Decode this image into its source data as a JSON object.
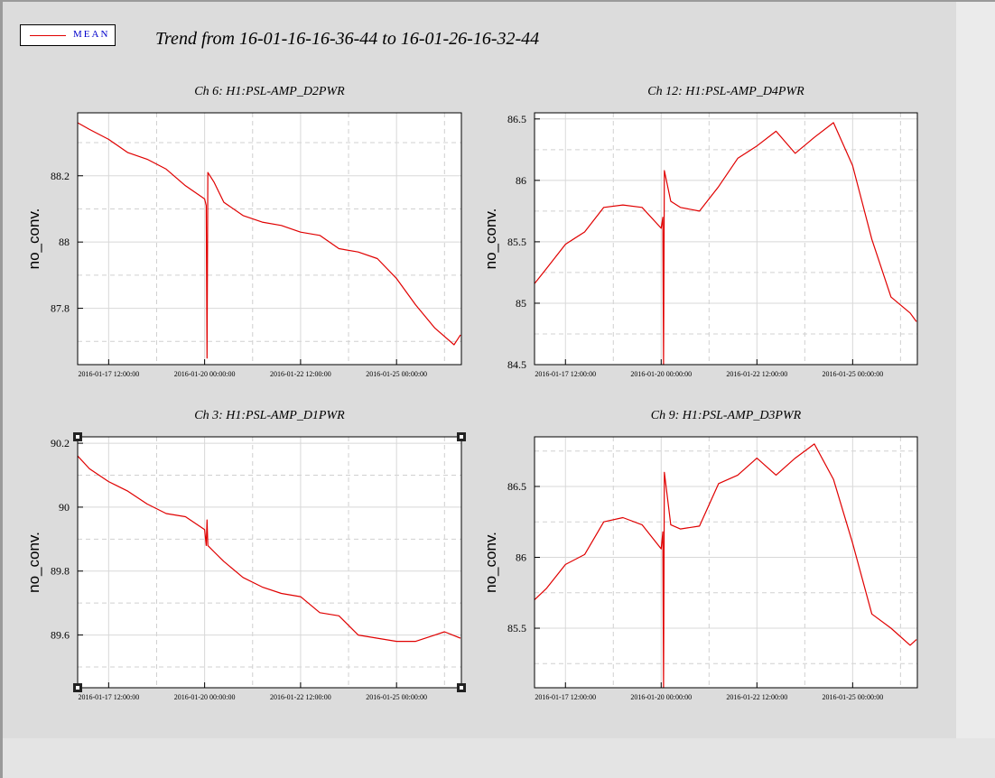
{
  "header": {
    "title": "Trend from 16-01-16-16-36-44 to 16-01-26-16-32-44",
    "legend_label": "MEAN",
    "legend_color": "#e00000"
  },
  "colors": {
    "plot_bg": "#ffffff",
    "page_bg": "#dcdcdc",
    "trace": "#e00000"
  },
  "chart_data": [
    {
      "type": "line",
      "title": "Ch 6: H1:PSL-AMP_D2PWR",
      "ylabel": "no_conv.",
      "x_ticks": [
        "2016-01-17 12:00:00",
        "2016-01-20 00:00:00",
        "2016-01-22 12:00:00",
        "2016-01-25 00:00:00"
      ],
      "y_ticks": [
        87.8,
        88,
        88.2
      ],
      "ylim": [
        87.63,
        88.39
      ],
      "xlim": [
        "2016-01-16 16:36:44",
        "2016-01-26 16:32:44"
      ],
      "grid": true,
      "series": [
        {
          "name": "MEAN",
          "x": [
            "2016-01-16 16:36",
            "2016-01-17 00:00",
            "2016-01-17 12:00",
            "2016-01-18 00:00",
            "2016-01-18 12:00",
            "2016-01-19 00:00",
            "2016-01-19 12:00",
            "2016-01-20 00:00",
            "2016-01-20 01:00",
            "2016-01-20 01:30",
            "2016-01-20 02:00",
            "2016-01-20 06:00",
            "2016-01-20 12:00",
            "2016-01-21 00:00",
            "2016-01-21 12:00",
            "2016-01-22 00:00",
            "2016-01-22 12:00",
            "2016-01-23 00:00",
            "2016-01-23 12:00",
            "2016-01-24 00:00",
            "2016-01-24 12:00",
            "2016-01-25 00:00",
            "2016-01-25 12:00",
            "2016-01-26 00:00",
            "2016-01-26 12:00",
            "2016-01-26 16:00"
          ],
          "values": [
            88.36,
            88.34,
            88.31,
            88.27,
            88.25,
            88.22,
            88.17,
            88.13,
            88.11,
            87.65,
            88.21,
            88.18,
            88.12,
            88.08,
            88.06,
            88.05,
            88.03,
            88.02,
            87.98,
            87.97,
            87.95,
            87.89,
            87.81,
            87.74,
            87.69,
            87.72
          ]
        }
      ]
    },
    {
      "type": "line",
      "title": "Ch 12: H1:PSL-AMP_D4PWR",
      "ylabel": "no_conv.",
      "x_ticks": [
        "2016-01-17 12:00:00",
        "2016-01-20 00:00:00",
        "2016-01-22 12:00:00",
        "2016-01-25 00:00:00"
      ],
      "y_ticks": [
        84.5,
        85,
        85.5,
        86,
        86.5
      ],
      "ylim": [
        84.5,
        86.55
      ],
      "xlim": [
        "2016-01-16 16:36:44",
        "2016-01-26 16:32:44"
      ],
      "grid": true,
      "series": [
        {
          "name": "MEAN",
          "x": [
            "2016-01-16 16:36",
            "2016-01-17 00:00",
            "2016-01-17 12:00",
            "2016-01-18 00:00",
            "2016-01-18 12:00",
            "2016-01-19 00:00",
            "2016-01-19 12:00",
            "2016-01-20 00:00",
            "2016-01-20 01:00",
            "2016-01-20 01:30",
            "2016-01-20 02:00",
            "2016-01-20 06:00",
            "2016-01-20 12:00",
            "2016-01-21 00:00",
            "2016-01-21 12:00",
            "2016-01-22 00:00",
            "2016-01-22 12:00",
            "2016-01-23 00:00",
            "2016-01-23 12:00",
            "2016-01-24 00:00",
            "2016-01-24 12:00",
            "2016-01-25 00:00",
            "2016-01-25 12:00",
            "2016-01-26 00:00",
            "2016-01-26 12:00",
            "2016-01-26 16:00"
          ],
          "values": [
            85.16,
            85.28,
            85.48,
            85.58,
            85.78,
            85.8,
            85.78,
            85.61,
            85.7,
            84.5,
            86.08,
            85.83,
            85.78,
            85.75,
            85.95,
            86.18,
            86.28,
            86.4,
            86.22,
            86.35,
            86.47,
            86.12,
            85.52,
            85.05,
            84.92,
            84.85
          ]
        }
      ]
    },
    {
      "type": "line",
      "title": "Ch 3: H1:PSL-AMP_D1PWR",
      "ylabel": "no_conv.",
      "x_ticks": [
        "2016-01-17 12:00:00",
        "2016-01-20 00:00:00",
        "2016-01-22 12:00:00",
        "2016-01-25 00:00:00"
      ],
      "y_ticks": [
        89.6,
        89.8,
        90,
        90.2
      ],
      "ylim": [
        89.435,
        90.22
      ],
      "xlim": [
        "2016-01-16 16:36:44",
        "2016-01-26 16:32:44"
      ],
      "grid": true,
      "series": [
        {
          "name": "MEAN",
          "x": [
            "2016-01-16 16:36",
            "2016-01-17 00:00",
            "2016-01-17 12:00",
            "2016-01-18 00:00",
            "2016-01-18 12:00",
            "2016-01-19 00:00",
            "2016-01-19 12:00",
            "2016-01-20 00:00",
            "2016-01-20 01:00",
            "2016-01-20 01:30",
            "2016-01-20 02:00",
            "2016-01-20 06:00",
            "2016-01-20 12:00",
            "2016-01-21 00:00",
            "2016-01-21 12:00",
            "2016-01-22 00:00",
            "2016-01-22 12:00",
            "2016-01-23 00:00",
            "2016-01-23 12:00",
            "2016-01-24 00:00",
            "2016-01-24 12:00",
            "2016-01-25 00:00",
            "2016-01-25 12:00",
            "2016-01-26 00:00",
            "2016-01-26 06:00",
            "2016-01-26 16:00"
          ],
          "values": [
            90.16,
            90.12,
            90.08,
            90.05,
            90.01,
            89.98,
            89.97,
            89.93,
            89.88,
            89.96,
            89.88,
            89.86,
            89.83,
            89.78,
            89.75,
            89.73,
            89.72,
            89.67,
            89.66,
            89.6,
            89.59,
            89.58,
            89.58,
            89.6,
            89.61,
            89.59
          ]
        }
      ]
    },
    {
      "type": "line",
      "title": "Ch 9: H1:PSL-AMP_D3PWR",
      "ylabel": "no_conv.",
      "x_ticks": [
        "2016-01-17 12:00:00",
        "2016-01-20 00:00:00",
        "2016-01-22 12:00:00",
        "2016-01-25 00:00:00"
      ],
      "y_ticks": [
        85.5,
        86,
        86.5
      ],
      "ylim": [
        85.08,
        86.85
      ],
      "xlim": [
        "2016-01-16 16:36:44",
        "2016-01-26 16:32:44"
      ],
      "grid": true,
      "series": [
        {
          "name": "MEAN",
          "x": [
            "2016-01-16 16:36",
            "2016-01-17 00:00",
            "2016-01-17 12:00",
            "2016-01-18 00:00",
            "2016-01-18 12:00",
            "2016-01-19 00:00",
            "2016-01-19 12:00",
            "2016-01-20 00:00",
            "2016-01-20 01:00",
            "2016-01-20 01:30",
            "2016-01-20 02:00",
            "2016-01-20 06:00",
            "2016-01-20 12:00",
            "2016-01-21 00:00",
            "2016-01-21 12:00",
            "2016-01-22 00:00",
            "2016-01-22 12:00",
            "2016-01-23 00:00",
            "2016-01-23 12:00",
            "2016-01-24 00:00",
            "2016-01-24 12:00",
            "2016-01-25 00:00",
            "2016-01-25 12:00",
            "2016-01-26 00:00",
            "2016-01-26 12:00",
            "2016-01-26 16:00"
          ],
          "values": [
            85.7,
            85.78,
            85.95,
            86.02,
            86.25,
            86.28,
            86.23,
            86.06,
            86.18,
            85.08,
            86.6,
            86.23,
            86.2,
            86.22,
            86.52,
            86.58,
            86.7,
            86.58,
            86.7,
            86.8,
            86.55,
            86.1,
            85.6,
            85.5,
            85.38,
            85.42
          ]
        }
      ]
    }
  ]
}
